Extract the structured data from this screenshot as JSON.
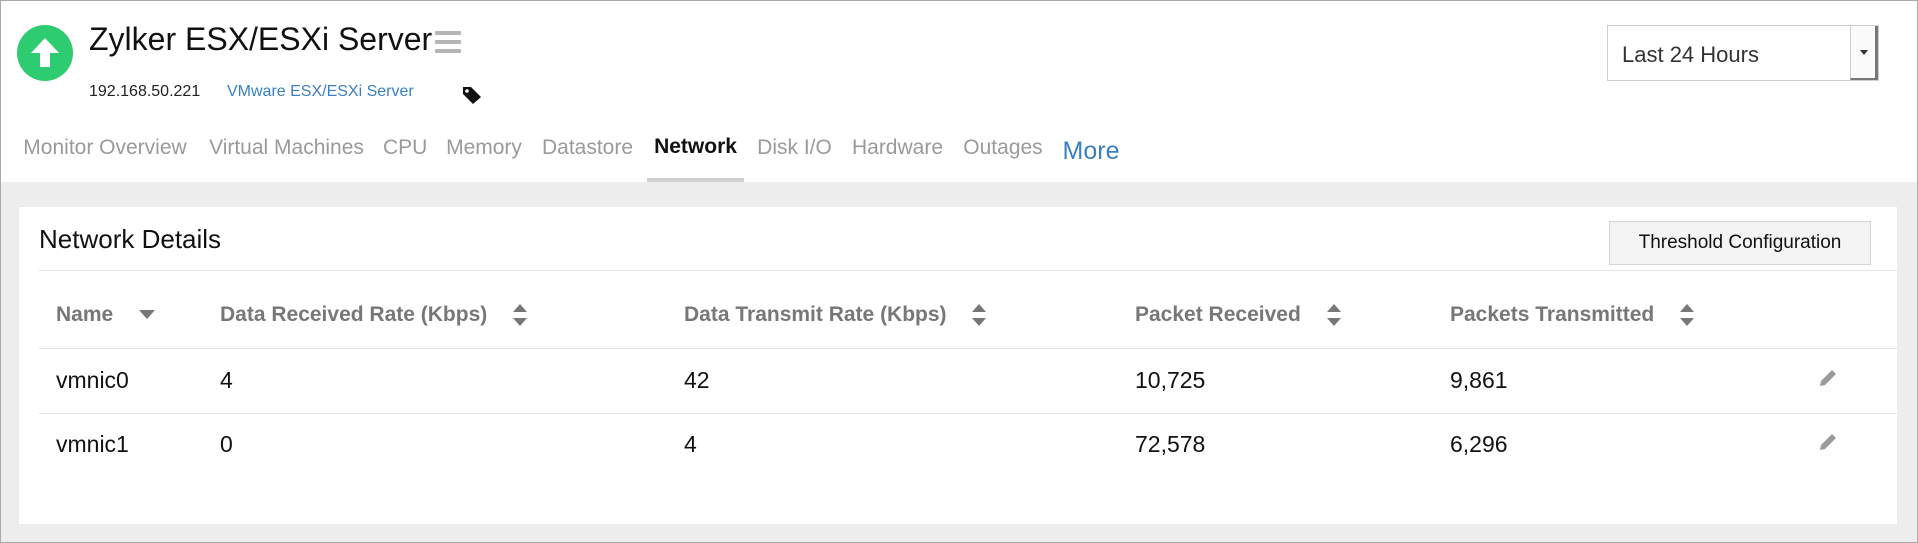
{
  "header": {
    "title": "Zylker ESX/ESXi Server",
    "ip": "192.168.50.221",
    "type_link": "VMware ESX/ESXi Server",
    "status_icon": "up-arrow-icon",
    "status_color": "#2ecc71",
    "time_range": {
      "selected": "Last 24 Hours"
    }
  },
  "tabs": [
    {
      "label": "Monitor Overview",
      "active": false
    },
    {
      "label": "Virtual Machines",
      "active": false
    },
    {
      "label": "CPU",
      "active": false
    },
    {
      "label": "Memory",
      "active": false
    },
    {
      "label": "Datastore",
      "active": false
    },
    {
      "label": "Network",
      "active": true
    },
    {
      "label": "Disk I/O",
      "active": false
    },
    {
      "label": "Hardware",
      "active": false
    },
    {
      "label": "Outages",
      "active": false
    },
    {
      "label": "More",
      "active": false
    }
  ],
  "panel": {
    "title": "Network Details",
    "threshold_button": "Threshold Configuration",
    "columns": [
      "Name",
      "Data Received Rate (Kbps)",
      "Data Transmit Rate (Kbps)",
      "Packet Received",
      "Packets Transmitted"
    ],
    "rows": [
      [
        "vmnic0",
        "4",
        "42",
        "10,725",
        "9,861"
      ],
      [
        "vmnic1",
        "0",
        "4",
        "72,578",
        "6,296"
      ]
    ]
  },
  "colors": {
    "accent_link": "#3a7fc0",
    "status_up": "#2ecc71"
  }
}
